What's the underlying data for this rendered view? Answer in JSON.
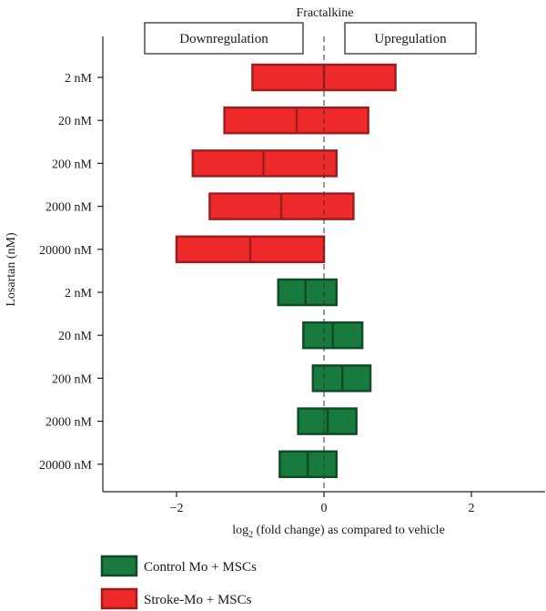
{
  "chart_data": {
    "type": "bar",
    "title": "Fractalkine",
    "xlabel_prefix": "log",
    "xlabel_sub": "2",
    "xlabel_suffix": " (fold change) as compared to vehicle",
    "ylabel": "Losartan (nM)",
    "xlim": [
      -3,
      3
    ],
    "xticks": [
      -2,
      0,
      2
    ],
    "xtick_labels": [
      "−2",
      "0",
      "2"
    ],
    "grid": false,
    "reference_line": 0,
    "annotation_boxes": [
      {
        "text": "Downregulation"
      },
      {
        "text": "Upregulation"
      }
    ],
    "categories": [
      "2 nM",
      "20 nM",
      "200 nM",
      "2000 nM",
      "20000 nM",
      "2 nM",
      "20 nM",
      "200 nM",
      "2000 nM",
      "20000 nM"
    ],
    "series": [
      {
        "name": "Stroke-Mo + MSCs",
        "color": "#ee2a2b",
        "edge_color": "#a01c1e",
        "rows": [
          0,
          1,
          2,
          3,
          4
        ],
        "low": [
          -0.97,
          -1.35,
          -1.78,
          -1.55,
          -2.0
        ],
        "mid": [
          0.0,
          -0.37,
          -0.82,
          -0.58,
          -1.0
        ],
        "high": [
          0.97,
          0.6,
          0.17,
          0.4,
          0.0
        ]
      },
      {
        "name": "Control Mo + MSCs",
        "color": "#187a3d",
        "edge_color": "#0e4d25",
        "rows": [
          5,
          6,
          7,
          8,
          9
        ],
        "low": [
          -0.62,
          -0.28,
          -0.15,
          -0.35,
          -0.6
        ],
        "mid": [
          -0.25,
          0.12,
          0.25,
          0.05,
          -0.22
        ],
        "high": [
          0.17,
          0.52,
          0.63,
          0.44,
          0.17
        ]
      }
    ],
    "legend": [
      {
        "name": "Control Mo + MSCs",
        "color": "#187a3d",
        "edge_color": "#0e4d25"
      },
      {
        "name": "Stroke-Mo + MSCs",
        "color": "#ee2a2b",
        "edge_color": "#a01c1e"
      }
    ],
    "legend_position": "bottom-left"
  }
}
